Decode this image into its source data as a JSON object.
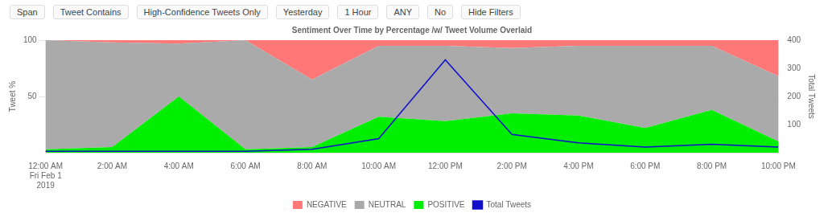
{
  "chart_data": {
    "type": "area",
    "title": "Sentiment Over Time by Percentage /w/ Tweet Volume Overlaid",
    "annotations": [
      "Span",
      "Tweet Contains",
      "High-Confidence Tweets Only",
      "Yesterday",
      "1 Hour",
      "ANY",
      "No",
      "Hide Filters"
    ],
    "categories": [
      "12:00 AM\nFri Feb 1\n2019",
      "2:00 AM",
      "4:00 AM",
      "6:00 AM",
      "8:00 AM",
      "10:00 AM",
      "12:00 PM",
      "2:00 PM",
      "4:00 PM",
      "6:00 PM",
      "8:00 PM",
      "10:00 PM"
    ],
    "series": [
      {
        "name": "POSITIVE",
        "type": "area",
        "color": "#00ee00",
        "values": [
          3,
          5,
          50,
          3,
          5,
          32,
          28,
          35,
          33,
          22,
          38,
          10
        ]
      },
      {
        "name": "NEUTRAL",
        "type": "area",
        "color": "#aaaaaa",
        "values": [
          97,
          93,
          47,
          97,
          60,
          63,
          67,
          58,
          62,
          73,
          57,
          58
        ]
      },
      {
        "name": "NEGATIVE",
        "type": "area",
        "color": "#ff7777",
        "values": [
          0,
          2,
          3,
          0,
          35,
          5,
          5,
          7,
          5,
          5,
          5,
          32
        ]
      },
      {
        "name": "Total Tweets",
        "type": "line",
        "axis": "y2",
        "color": "#1111cc",
        "values": [
          5,
          5,
          5,
          5,
          12,
          50,
          330,
          65,
          35,
          20,
          30,
          20
        ]
      }
    ],
    "ylabel": "Tweet %",
    "y2label": "Total Tweets",
    "ylim": [
      0,
      100
    ],
    "yticks": [
      50,
      100
    ],
    "y2lim": [
      0,
      400
    ],
    "y2ticks": [
      100,
      200,
      300,
      400
    ],
    "stacked": true,
    "grid": true,
    "legend": "bottom"
  }
}
